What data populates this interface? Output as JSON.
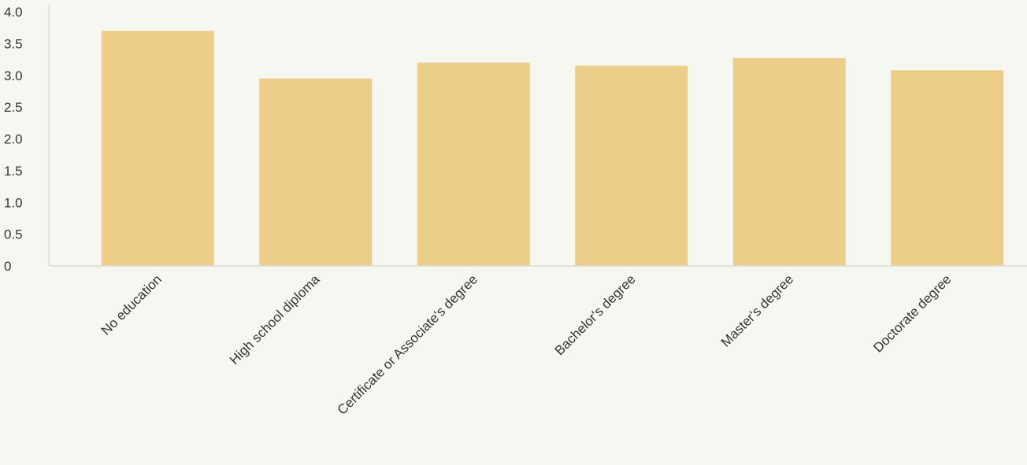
{
  "chart_data": {
    "type": "bar",
    "title": "",
    "xlabel": "",
    "ylabel": "",
    "categories": [
      "No education",
      "High school diploma",
      "Certificate or Associate's degree",
      "Bachelor's degree",
      "Master's degree",
      "Doctorate degree"
    ],
    "values": [
      3.7,
      2.95,
      3.2,
      3.15,
      3.27,
      3.08
    ],
    "ylim": [
      0,
      4.0
    ],
    "yticks": [
      "0",
      "0.5",
      "1.0",
      "1.5",
      "2.0",
      "2.5",
      "3.0",
      "3.5",
      "4.0"
    ],
    "grid": false,
    "legend": "none",
    "colors": {
      "bar": "#ecce89",
      "text": "#333333",
      "axis": "#dcdcd6",
      "background": "#f7f7f2"
    }
  }
}
